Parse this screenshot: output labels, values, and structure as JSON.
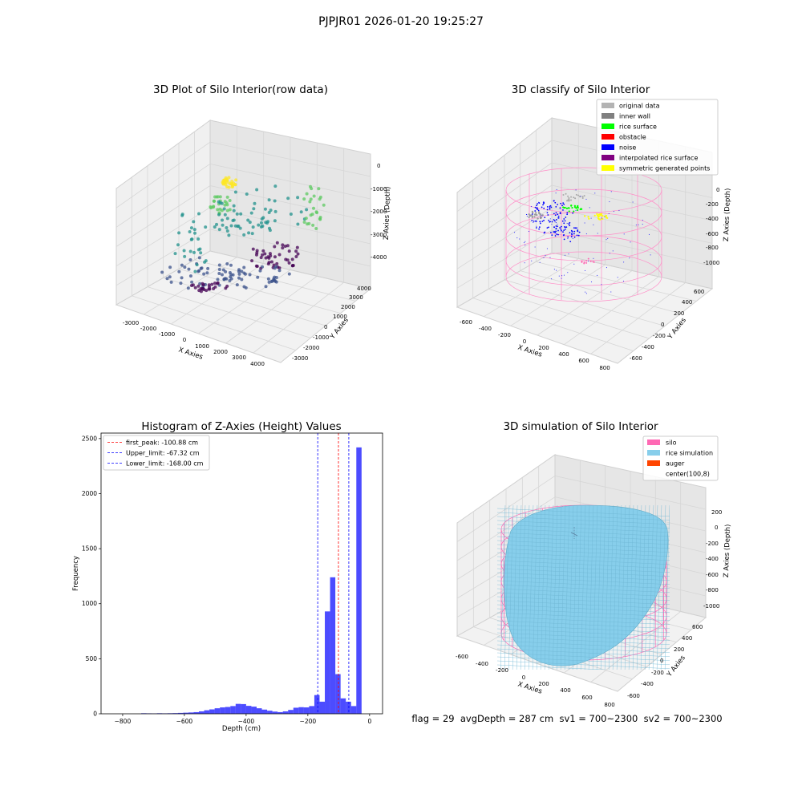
{
  "suptitle": "PJPJR01 2026-01-20 19:25:27",
  "footer": "flag = 29  avgDepth = 287 cm  sv1 = 700~2300  sv2 = 700~2300",
  "chart_data": [
    {
      "type": "scatter",
      "projection": "3d",
      "title": "3D Plot of Silo Interior(row data)",
      "xlabel": "X Axies",
      "ylabel": "Y Axies",
      "zlabel": "Z Axies (Depth)",
      "xticks": [
        "-3000",
        "-2000",
        "-1000",
        "0",
        "1000",
        "2000",
        "3000",
        "4000"
      ],
      "yticks": [
        "-3000",
        "-2000",
        "-1000",
        "0",
        "1000",
        "2000",
        "3000",
        "4000"
      ],
      "zticks": [
        "0",
        "-1000",
        "-2000",
        "-3000",
        "-4000"
      ],
      "colormap": "viridis"
    },
    {
      "type": "scatter",
      "projection": "3d",
      "title": "3D classify of Silo Interior",
      "xlabel": "X Axies",
      "ylabel": "Y Axies",
      "zlabel": "Z Axies (Depth)",
      "xticks": [
        "-600",
        "-400",
        "-200",
        "0",
        "200",
        "400",
        "600",
        "800"
      ],
      "yticks": [
        "-600",
        "-400",
        "-200",
        "0",
        "200",
        "400",
        "600"
      ],
      "zticks": [
        "0",
        "-200",
        "-400",
        "-600",
        "-800",
        "-1000"
      ],
      "legend": [
        {
          "label": "original data",
          "color": "#b3b3b3"
        },
        {
          "label": "inner wall",
          "color": "#808080"
        },
        {
          "label": "rice surface",
          "color": "#00ff00"
        },
        {
          "label": "obstacle",
          "color": "#ff0000"
        },
        {
          "label": "noise",
          "color": "#0000ff"
        },
        {
          "label": "interpolated rice surface",
          "color": "#800080"
        },
        {
          "label": "symmetric generated points",
          "color": "#ffff00"
        }
      ],
      "legend_position": "top-right"
    },
    {
      "type": "bar",
      "title": "Histogram of Z-Axies (Height) Values",
      "xlabel": "Depth (cm)",
      "ylabel": "Frequency",
      "xlim": [
        -870,
        42
      ],
      "ylim": [
        0,
        2550
      ],
      "xticks": [
        -800,
        -600,
        -400,
        -200,
        0
      ],
      "yticks": [
        0,
        500,
        1000,
        1500,
        2000,
        2500
      ],
      "bin_width": 17,
      "bin_start": [
        -740,
        -723,
        -706,
        -689,
        -672,
        -655,
        -638,
        -621,
        -604,
        -587,
        -570,
        -553,
        -536,
        -519,
        -502,
        -485,
        -468,
        -451,
        -434,
        -417,
        -400,
        -383,
        -366,
        -349,
        -332,
        -315,
        -298,
        -281,
        -264,
        -247,
        -230,
        -213,
        -196,
        -179,
        -162,
        -145,
        -128,
        -111,
        -94,
        -77,
        -60,
        -43,
        -26,
        -9
      ],
      "values": [
        5,
        4,
        3,
        5,
        4,
        5,
        6,
        8,
        10,
        12,
        15,
        22,
        32,
        40,
        50,
        58,
        62,
        70,
        90,
        88,
        72,
        65,
        50,
        38,
        28,
        20,
        15,
        22,
        35,
        55,
        60,
        58,
        70,
        170,
        110,
        930,
        1240,
        360,
        140,
        110,
        70,
        2420,
        0,
        0
      ],
      "color": "#0000ff",
      "lines": [
        {
          "label": "first_peak: -100.88 cm",
          "x": -100.88,
          "color": "#ff0000"
        },
        {
          "label": "Upper_limit: -67.32 cm",
          "x": -67.32,
          "color": "#0000ff"
        },
        {
          "label": "Lower_limit: -168.00 cm",
          "x": -168.0,
          "color": "#0000ff"
        }
      ],
      "legend_position": "top-left"
    },
    {
      "type": "area",
      "projection": "3d",
      "title": "3D simulation of Silo Interior",
      "xlabel": "X Axies",
      "ylabel": "Y Axies",
      "zlabel": "Z Axies (Depth)",
      "xticks": [
        "-600",
        "-400",
        "-200",
        "0",
        "200",
        "400",
        "600",
        "800"
      ],
      "yticks": [
        "-600",
        "-400",
        "-200",
        "0",
        "200",
        "400",
        "600"
      ],
      "zticks": [
        "200",
        "0",
        "-200",
        "-400",
        "-600",
        "-800",
        "-1000"
      ],
      "legend": [
        {
          "label": "silo",
          "color": "#ff69b4"
        },
        {
          "label": "rice simulation",
          "color": "#87ceeb"
        },
        {
          "label": "auger",
          "color": "#ff4500"
        },
        {
          "label": "center(100,8)",
          "color": ""
        }
      ],
      "legend_position": "top-right"
    }
  ]
}
